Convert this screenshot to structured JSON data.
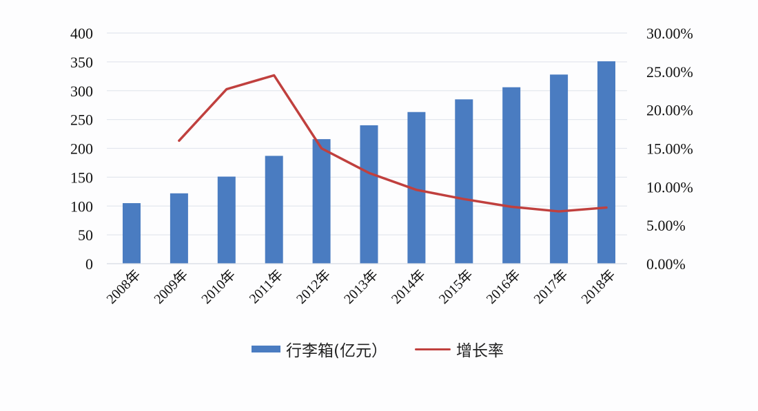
{
  "chart_data": {
    "type": "bar",
    "combo": "bar+line, dual y-axis",
    "title": "",
    "xlabel": "",
    "ylabel": "",
    "categories": [
      "2008年",
      "2009年",
      "2010年",
      "2011年",
      "2012年",
      "2013年",
      "2014年",
      "2015年",
      "2016年",
      "2017年",
      "2018年"
    ],
    "series": [
      {
        "name": "行李箱(亿元）",
        "type": "bar",
        "axis": "left",
        "color": "#4a7cc1",
        "values": [
          105,
          122,
          151,
          187,
          216,
          240,
          263,
          285,
          306,
          328,
          351
        ]
      },
      {
        "name": "增长率",
        "type": "line",
        "axis": "right",
        "color": "#c0403e",
        "values": [
          null,
          0.16,
          0.227,
          0.245,
          0.15,
          0.118,
          0.096,
          0.084,
          0.074,
          0.068,
          0.073
        ]
      }
    ],
    "ylim": [
      0,
      400
    ],
    "y_ticks": [
      "0",
      "50",
      "100",
      "150",
      "200",
      "250",
      "300",
      "350",
      "400"
    ],
    "y2lim": [
      0,
      0.3
    ],
    "y2_ticks": [
      "0.00%",
      "5.00%",
      "10.00%",
      "15.00%",
      "20.00%",
      "25.00%",
      "30.00%"
    ],
    "grid": true,
    "legend_position": "bottom"
  },
  "legend": {
    "bar_label": "行李箱(亿元）",
    "line_label": "增长率"
  },
  "colors": {
    "bar": "#4a7cc1",
    "line": "#c0403e",
    "grid": "#e3e7ee",
    "text": "#111111"
  }
}
